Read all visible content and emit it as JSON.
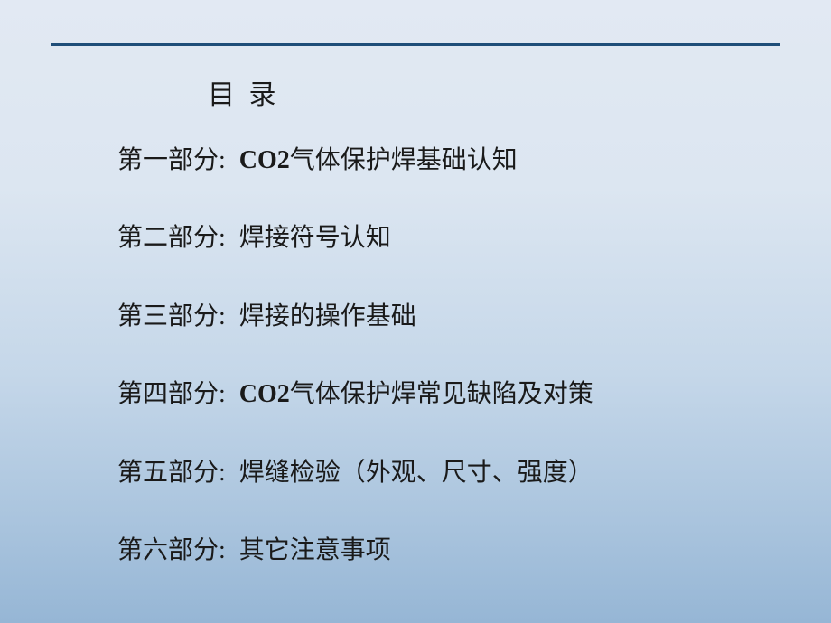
{
  "slide": {
    "title": "目 录",
    "toc": [
      {
        "label": "第一部分:",
        "text_prefix": "CO2",
        "text_rest": "气体保护焊基础认知",
        "has_co2": true
      },
      {
        "label": "第二部分:",
        "text": "焊接符号认知",
        "has_co2": false
      },
      {
        "label": "第三部分:",
        "text": "焊接的操作基础",
        "has_co2": false
      },
      {
        "label": "第四部分:",
        "text_prefix": "CO2",
        "text_rest": "气体保护焊常见缺陷及对策",
        "has_co2": true
      },
      {
        "label": "第五部分:",
        "text": "焊缝检验（外观、尺寸、强度）",
        "has_co2": false
      },
      {
        "label": "第六部分:",
        "text": "其它注意事项",
        "has_co2": false
      }
    ],
    "colors": {
      "line_color": "#1f4e79",
      "text_color": "#1a1a1a",
      "bg_gradient_start": "#e2e9f3",
      "bg_gradient_end": "#96b6d5"
    },
    "typography": {
      "title_fontsize": 30,
      "item_fontsize": 28,
      "font_family": "SimSun"
    }
  }
}
